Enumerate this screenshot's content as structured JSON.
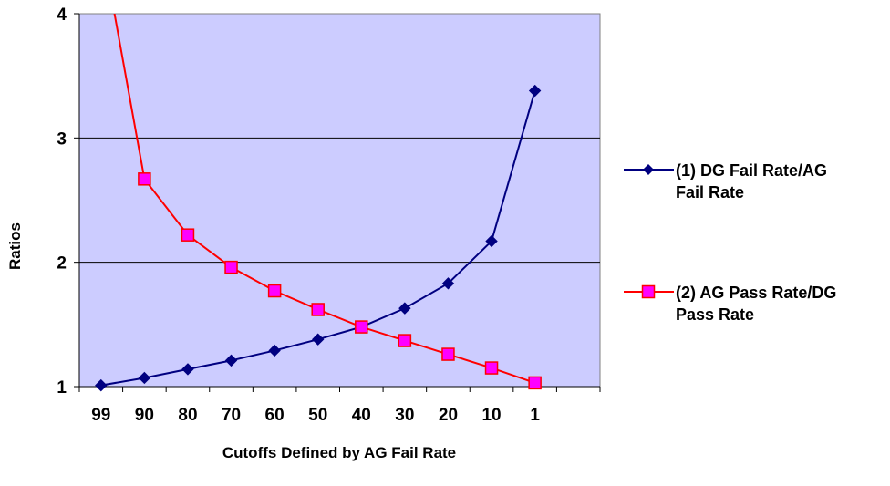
{
  "chart_data": {
    "type": "line",
    "title": "",
    "xlabel": "Cutoffs Defined by AG Fail Rate",
    "ylabel": "Ratios",
    "categories": [
      "99",
      "90",
      "80",
      "70",
      "60",
      "50",
      "40",
      "30",
      "20",
      "10",
      "1"
    ],
    "ylim": [
      1,
      4
    ],
    "yticks": [
      "1",
      "2",
      "3",
      "4"
    ],
    "grid": true,
    "plot_background": "#ccccff",
    "legend_position": "right",
    "series": [
      {
        "name": "(1) DG Fail Rate/AG Fail Rate",
        "legend_lines": [
          "(1) DG Fail Rate/AG",
          "Fail Rate"
        ],
        "color": "#000080",
        "marker": "diamond",
        "values": [
          1.01,
          1.07,
          1.14,
          1.21,
          1.29,
          1.38,
          1.48,
          1.63,
          1.83,
          2.17,
          3.38
        ]
      },
      {
        "name": "(2) AG Pass Rate/DG Pass Rate",
        "legend_lines": [
          "(2) AG Pass Rate/DG",
          "Pass Rate"
        ],
        "color": "#ff0000",
        "marker_fill": "#ff00ff",
        "marker": "square",
        "values": [
          4.6,
          2.67,
          2.22,
          1.96,
          1.77,
          1.62,
          1.48,
          1.37,
          1.26,
          1.15,
          1.03
        ]
      }
    ]
  }
}
